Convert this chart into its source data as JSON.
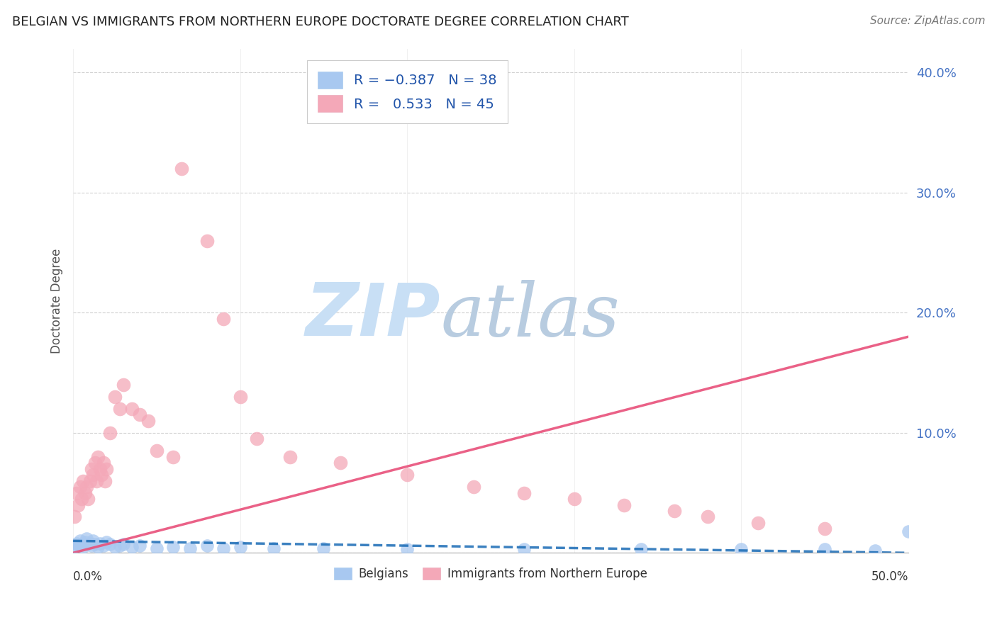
{
  "title": "BELGIAN VS IMMIGRANTS FROM NORTHERN EUROPE DOCTORATE DEGREE CORRELATION CHART",
  "source": "Source: ZipAtlas.com",
  "ylabel": "Doctorate Degree",
  "xlim": [
    0.0,
    0.5
  ],
  "ylim": [
    0.0,
    0.42
  ],
  "yticks": [
    0.0,
    0.1,
    0.2,
    0.3,
    0.4
  ],
  "ytick_labels": [
    "",
    "10.0%",
    "20.0%",
    "30.0%",
    "40.0%"
  ],
  "color_belgian": "#a8c8f0",
  "color_immigrant": "#f4a8b8",
  "line_belgian": "#1a6bb5",
  "line_immigrant": "#e8507a",
  "watermark_zip_color": "#c8dff5",
  "watermark_atlas_color": "#b8cce0",
  "belgian_x": [
    0.001,
    0.002,
    0.003,
    0.004,
    0.005,
    0.006,
    0.007,
    0.008,
    0.009,
    0.01,
    0.011,
    0.012,
    0.013,
    0.015,
    0.016,
    0.018,
    0.02,
    0.022,
    0.025,
    0.028,
    0.03,
    0.035,
    0.04,
    0.05,
    0.06,
    0.07,
    0.08,
    0.09,
    0.1,
    0.12,
    0.15,
    0.2,
    0.27,
    0.34,
    0.4,
    0.45,
    0.48,
    0.5
  ],
  "belgian_y": [
    0.005,
    0.008,
    0.006,
    0.01,
    0.007,
    0.005,
    0.009,
    0.012,
    0.007,
    0.008,
    0.006,
    0.01,
    0.007,
    0.005,
    0.008,
    0.006,
    0.009,
    0.007,
    0.005,
    0.006,
    0.007,
    0.005,
    0.006,
    0.004,
    0.005,
    0.004,
    0.006,
    0.004,
    0.005,
    0.004,
    0.004,
    0.003,
    0.003,
    0.003,
    0.003,
    0.003,
    0.002,
    0.018
  ],
  "immigrant_x": [
    0.001,
    0.002,
    0.003,
    0.004,
    0.005,
    0.006,
    0.007,
    0.008,
    0.009,
    0.01,
    0.011,
    0.012,
    0.013,
    0.014,
    0.015,
    0.016,
    0.017,
    0.018,
    0.019,
    0.02,
    0.022,
    0.025,
    0.028,
    0.03,
    0.035,
    0.04,
    0.045,
    0.05,
    0.06,
    0.065,
    0.08,
    0.09,
    0.1,
    0.11,
    0.13,
    0.16,
    0.2,
    0.24,
    0.27,
    0.3,
    0.33,
    0.36,
    0.38,
    0.41,
    0.45
  ],
  "immigrant_y": [
    0.03,
    0.05,
    0.04,
    0.055,
    0.045,
    0.06,
    0.05,
    0.055,
    0.045,
    0.06,
    0.07,
    0.065,
    0.075,
    0.06,
    0.08,
    0.07,
    0.065,
    0.075,
    0.06,
    0.07,
    0.1,
    0.13,
    0.12,
    0.14,
    0.12,
    0.115,
    0.11,
    0.085,
    0.08,
    0.32,
    0.26,
    0.195,
    0.13,
    0.095,
    0.08,
    0.075,
    0.065,
    0.055,
    0.05,
    0.045,
    0.04,
    0.035,
    0.03,
    0.025,
    0.02
  ],
  "trend_belgian_x0": 0.0,
  "trend_belgian_x1": 0.5,
  "trend_belgian_y0": 0.01,
  "trend_belgian_y1": 0.0,
  "trend_immigrant_x0": 0.0,
  "trend_immigrant_x1": 0.5,
  "trend_immigrant_y0": 0.0,
  "trend_immigrant_y1": 0.18
}
